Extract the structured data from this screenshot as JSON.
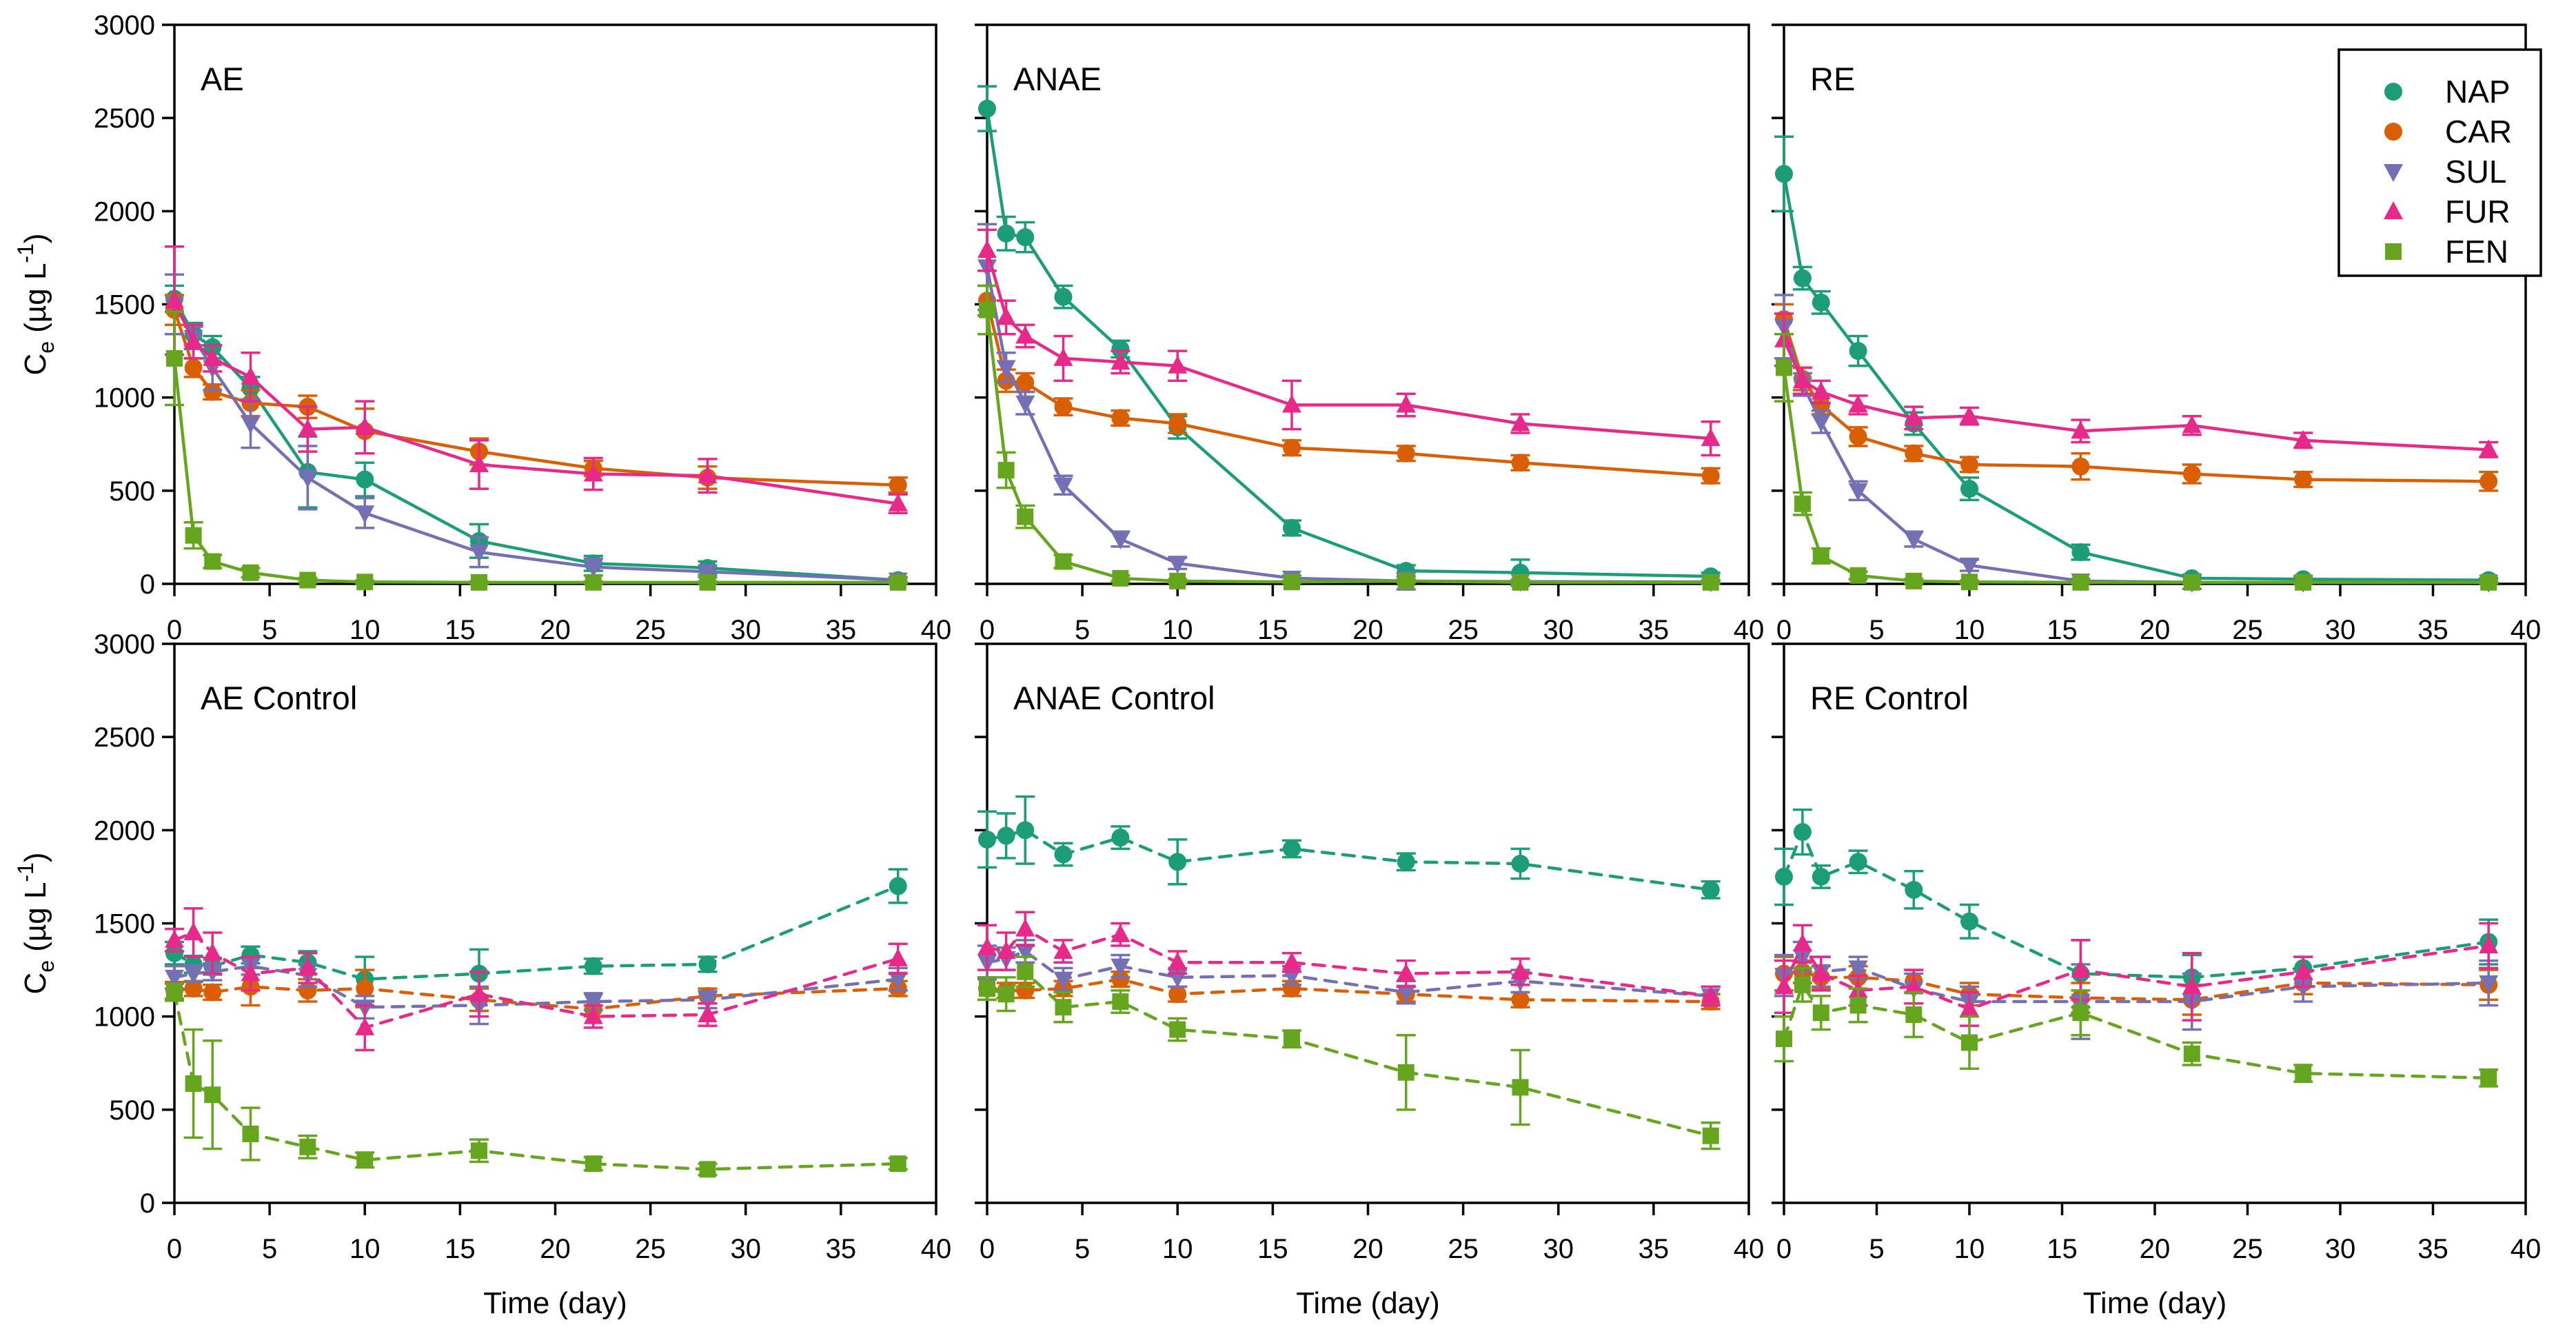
{
  "chart_data": {
    "type": "line",
    "xlabel": "Time (day)",
    "ylabel": {
      "base": "C",
      "sub": "e",
      "mid": " (µg L",
      "sup": "-1",
      "end": ")"
    },
    "xlim": [
      0,
      40
    ],
    "ylim": [
      0,
      3000
    ],
    "xticks": [
      0,
      5,
      10,
      15,
      20,
      25,
      30,
      35,
      40
    ],
    "yticks": [
      0,
      500,
      1000,
      1500,
      2000,
      2500,
      3000
    ],
    "grid": "off",
    "x": [
      0,
      1,
      2,
      4,
      7,
      10,
      16,
      22,
      28,
      38
    ],
    "legend": {
      "position": "top-right",
      "entries": [
        {
          "name": "NAP",
          "color": "#1b9e77",
          "marker": "circle"
        },
        {
          "name": "CAR",
          "color": "#d95f02",
          "marker": "circle"
        },
        {
          "name": "SUL",
          "color": "#7570b3",
          "marker": "triangle-down"
        },
        {
          "name": "FUR",
          "color": "#e7298a",
          "marker": "triangle-up"
        },
        {
          "name": "FEN",
          "color": "#66a61e",
          "marker": "square"
        }
      ]
    },
    "panels": [
      {
        "label": "AE",
        "row": 0,
        "col": 0,
        "linestyle": "solid",
        "series": [
          {
            "name": "NAP",
            "values": [
              1530,
              1340,
              1270,
              1050,
              600,
              560,
              230,
              110,
              85,
              20
            ],
            "errors": [
              70,
              60,
              60,
              60,
              190,
              90,
              90,
              40,
              35,
              15
            ]
          },
          {
            "name": "CAR",
            "values": [
              1470,
              1160,
              1030,
              970,
              950,
              820,
              710,
              620,
              570,
              530
            ],
            "errors": [
              80,
              50,
              40,
              70,
              60,
              120,
              70,
              40,
              60,
              40
            ]
          },
          {
            "name": "SUL",
            "values": [
              1500,
              1320,
              1160,
              860,
              570,
              380,
              170,
              90,
              65,
              20
            ],
            "errors": [
              160,
              60,
              120,
              130,
              170,
              80,
              80,
              45,
              30,
              15
            ]
          },
          {
            "name": "FUR",
            "values": [
              1520,
              1300,
              1210,
              1110,
              830,
              840,
              640,
              590,
              580,
              430
            ],
            "errors": [
              290,
              90,
              70,
              130,
              120,
              140,
              130,
              85,
              90,
              50
            ]
          },
          {
            "name": "FEN",
            "values": [
              1210,
              260,
              120,
              60,
              20,
              10,
              8,
              8,
              8,
              8
            ],
            "errors": [
              250,
              70,
              35,
              25,
              12,
              8,
              5,
              5,
              5,
              5
            ]
          }
        ]
      },
      {
        "label": "ANAE",
        "row": 0,
        "col": 1,
        "linestyle": "solid",
        "series": [
          {
            "name": "NAP",
            "values": [
              2550,
              1880,
              1860,
              1540,
              1260,
              840,
              300,
              70,
              60,
              40
            ],
            "errors": [
              120,
              90,
              80,
              60,
              45,
              60,
              40,
              30,
              70,
              20
            ]
          },
          {
            "name": "CAR",
            "values": [
              1520,
              1090,
              1080,
              950,
              890,
              860,
              730,
              700,
              650,
              580
            ],
            "errors": [
              80,
              60,
              50,
              45,
              40,
              50,
              40,
              40,
              40,
              40
            ]
          },
          {
            "name": "SUL",
            "values": [
              1700,
              1160,
              970,
              530,
              240,
              110,
              30,
              15,
              12,
              10
            ],
            "errors": [
              230,
              80,
              60,
              50,
              40,
              30,
              15,
              45,
              10,
              10
            ]
          },
          {
            "name": "FUR",
            "values": [
              1790,
              1430,
              1330,
              1210,
              1190,
              1170,
              960,
              960,
              860,
              780
            ],
            "errors": [
              110,
              90,
              60,
              120,
              60,
              80,
              130,
              60,
              50,
              90
            ]
          },
          {
            "name": "FEN",
            "values": [
              1470,
              610,
              360,
              120,
              30,
              15,
              10,
              15,
              8,
              8
            ],
            "errors": [
              130,
              95,
              60,
              35,
              15,
              10,
              6,
              10,
              5,
              5
            ]
          }
        ]
      },
      {
        "label": "RE",
        "row": 0,
        "col": 2,
        "linestyle": "solid",
        "series": [
          {
            "name": "NAP",
            "values": [
              2200,
              1640,
              1510,
              1250,
              860,
              510,
              170,
              30,
              25,
              20
            ],
            "errors": [
              200,
              60,
              60,
              80,
              60,
              60,
              40,
              20,
              15,
              10
            ]
          },
          {
            "name": "CAR",
            "values": [
              1420,
              1100,
              960,
              790,
              700,
              640,
              630,
              590,
              560,
              550
            ],
            "errors": [
              80,
              60,
              50,
              50,
              40,
              40,
              70,
              50,
              40,
              50
            ]
          },
          {
            "name": "SUL",
            "values": [
              1380,
              1070,
              870,
              500,
              240,
              100,
              15,
              8,
              8,
              8
            ],
            "errors": [
              170,
              60,
              60,
              50,
              40,
              30,
              12,
              35,
              5,
              5
            ]
          },
          {
            "name": "FUR",
            "values": [
              1310,
              1090,
              1030,
              960,
              890,
              900,
              820,
              850,
              770,
              720
            ],
            "errors": [
              140,
              70,
              60,
              50,
              60,
              45,
              60,
              50,
              40,
              40
            ]
          },
          {
            "name": "FEN",
            "values": [
              1160,
              430,
              150,
              45,
              15,
              10,
              8,
              8,
              8,
              8
            ],
            "errors": [
              180,
              60,
              40,
              20,
              12,
              8,
              5,
              5,
              5,
              5
            ]
          }
        ]
      },
      {
        "label": "AE Control",
        "row": 1,
        "col": 0,
        "linestyle": "dashed",
        "series": [
          {
            "name": "NAP",
            "values": [
              1340,
              1280,
              1270,
              1330,
              1290,
              1200,
              1230,
              1270,
              1280,
              1700
            ],
            "errors": [
              60,
              45,
              45,
              45,
              60,
              120,
              130,
              40,
              40,
              90
            ]
          },
          {
            "name": "CAR",
            "values": [
              1140,
              1150,
              1130,
              1160,
              1140,
              1150,
              1090,
              1040,
              1110,
              1150
            ],
            "errors": [
              45,
              40,
              40,
              100,
              60,
              100,
              60,
              40,
              40,
              40
            ]
          },
          {
            "name": "SUL",
            "values": [
              1210,
              1230,
              1240,
              1270,
              1220,
              1050,
              1060,
              1080,
              1090,
              1200
            ],
            "errors": [
              60,
              45,
              45,
              45,
              60,
              60,
              100,
              45,
              45,
              60
            ]
          },
          {
            "name": "FUR",
            "values": [
              1410,
              1450,
              1340,
              1230,
              1260,
              940,
              1120,
              1000,
              1010,
              1310
            ],
            "errors": [
              60,
              130,
              110,
              90,
              80,
              120,
              120,
              60,
              60,
              80
            ]
          },
          {
            "name": "FEN",
            "values": [
              1130,
              640,
              580,
              370,
              300,
              230,
              280,
              210,
              180,
              210
            ],
            "errors": [
              45,
              290,
              290,
              140,
              60,
              40,
              60,
              35,
              30,
              30
            ]
          }
        ]
      },
      {
        "label": "ANAE Control",
        "row": 1,
        "col": 1,
        "linestyle": "dashed",
        "series": [
          {
            "name": "NAP",
            "values": [
              1950,
              1970,
              2000,
              1870,
              1960,
              1830,
              1900,
              1830,
              1820,
              1680
            ],
            "errors": [
              150,
              120,
              180,
              60,
              60,
              120,
              45,
              45,
              80,
              45
            ]
          },
          {
            "name": "CAR",
            "values": [
              1150,
              1140,
              1140,
              1150,
              1200,
              1120,
              1150,
              1120,
              1090,
              1080
            ],
            "errors": [
              60,
              40,
              40,
              40,
              40,
              40,
              40,
              40,
              40,
              40
            ]
          },
          {
            "name": "SUL",
            "values": [
              1290,
              1310,
              1350,
              1200,
              1270,
              1210,
              1220,
              1130,
              1190,
              1110
            ],
            "errors": [
              90,
              60,
              60,
              60,
              60,
              50,
              50,
              60,
              60,
              50
            ]
          },
          {
            "name": "FUR",
            "values": [
              1370,
              1350,
              1470,
              1350,
              1440,
              1290,
              1290,
              1230,
              1240,
              1110
            ],
            "errors": [
              120,
              100,
              90,
              60,
              60,
              60,
              50,
              70,
              70,
              50
            ]
          },
          {
            "name": "FEN",
            "values": [
              1150,
              1120,
              1240,
              1050,
              1080,
              930,
              880,
              700,
              620,
              360
            ],
            "errors": [
              60,
              90,
              80,
              80,
              60,
              60,
              45,
              200,
              200,
              70
            ]
          }
        ]
      },
      {
        "label": "RE Control",
        "row": 1,
        "col": 2,
        "linestyle": "dashed",
        "series": [
          {
            "name": "NAP",
            "values": [
              1750,
              1990,
              1750,
              1830,
              1680,
              1510,
              1230,
              1210,
              1260,
              1400
            ],
            "errors": [
              150,
              120,
              60,
              60,
              100,
              90,
              180,
              120,
              60,
              120
            ]
          },
          {
            "name": "CAR",
            "values": [
              1230,
              1240,
              1210,
              1210,
              1190,
              1120,
              1100,
              1090,
              1180,
              1170
            ],
            "errors": [
              90,
              60,
              60,
              60,
              60,
              60,
              80,
              80,
              60,
              80
            ]
          },
          {
            "name": "SUL",
            "values": [
              1220,
              1320,
              1240,
              1260,
              1150,
              1080,
              1080,
              1080,
              1160,
              1180
            ],
            "errors": [
              110,
              80,
              80,
              60,
              80,
              80,
              200,
              150,
              80,
              120
            ]
          },
          {
            "name": "FUR",
            "values": [
              1160,
              1390,
              1230,
              1140,
              1160,
              1040,
              1250,
              1160,
              1240,
              1380
            ],
            "errors": [
              140,
              100,
              90,
              80,
              90,
              90,
              160,
              180,
              80,
              120
            ]
          },
          {
            "name": "FEN",
            "values": [
              880,
              1170,
              1020,
              1060,
              1010,
              860,
              1020,
              800,
              695,
              670
            ],
            "errors": [
              120,
              90,
              90,
              90,
              120,
              140,
              120,
              60,
              45,
              45
            ]
          }
        ]
      }
    ]
  }
}
